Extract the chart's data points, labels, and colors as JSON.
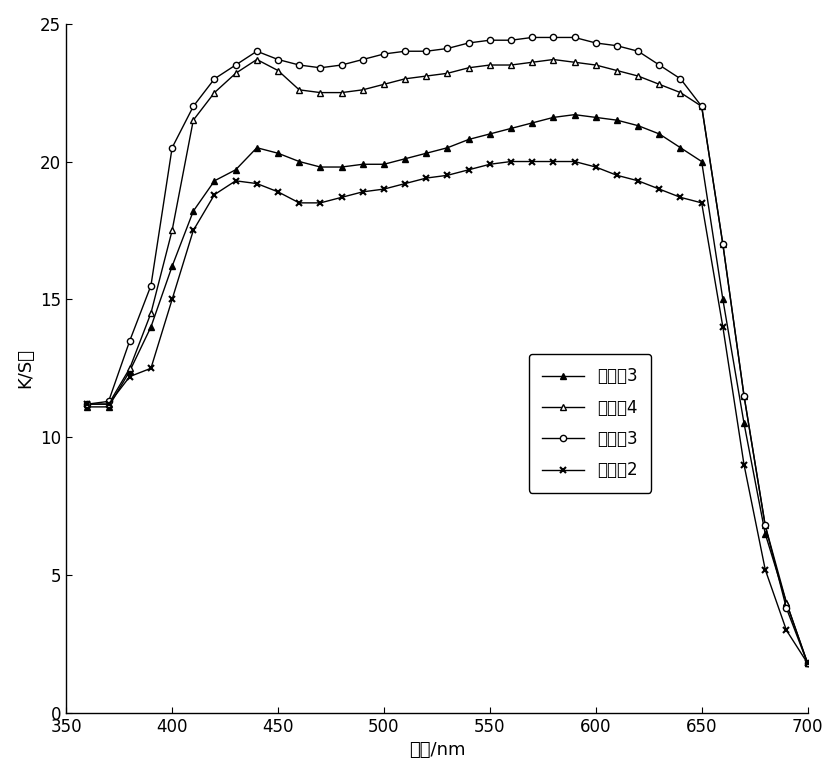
{
  "x": [
    360,
    370,
    380,
    390,
    400,
    410,
    420,
    430,
    440,
    450,
    460,
    470,
    480,
    490,
    500,
    510,
    520,
    530,
    540,
    550,
    560,
    570,
    580,
    590,
    600,
    610,
    620,
    630,
    640,
    650,
    660,
    670,
    680,
    690,
    700
  ],
  "duibili3": [
    11.1,
    11.1,
    12.4,
    14.0,
    16.2,
    18.2,
    19.3,
    19.7,
    20.5,
    20.3,
    20.0,
    19.8,
    19.8,
    19.9,
    19.9,
    20.1,
    20.3,
    20.5,
    20.8,
    21.0,
    21.2,
    21.4,
    21.6,
    21.7,
    21.6,
    21.5,
    21.3,
    21.0,
    20.5,
    20.0,
    15.0,
    10.5,
    6.5,
    4.0,
    1.8
  ],
  "shishi4": [
    11.2,
    11.2,
    12.5,
    14.5,
    17.5,
    21.5,
    22.5,
    23.2,
    23.7,
    23.3,
    22.6,
    22.5,
    22.5,
    22.6,
    22.8,
    23.0,
    23.1,
    23.2,
    23.4,
    23.5,
    23.5,
    23.6,
    23.7,
    23.6,
    23.5,
    23.3,
    23.1,
    22.8,
    22.5,
    22.0,
    17.0,
    11.5,
    6.8,
    4.0,
    1.8
  ],
  "shishi3": [
    11.2,
    11.3,
    13.5,
    15.5,
    20.5,
    22.0,
    23.0,
    23.5,
    24.0,
    23.7,
    23.5,
    23.4,
    23.5,
    23.7,
    23.9,
    24.0,
    24.0,
    24.1,
    24.3,
    24.4,
    24.4,
    24.5,
    24.5,
    24.5,
    24.3,
    24.2,
    24.0,
    23.5,
    23.0,
    22.0,
    17.0,
    11.5,
    6.8,
    3.8,
    1.8
  ],
  "duibili2": [
    11.2,
    11.2,
    12.2,
    12.5,
    15.0,
    17.5,
    18.8,
    19.3,
    19.2,
    18.9,
    18.5,
    18.5,
    18.7,
    18.9,
    19.0,
    19.2,
    19.4,
    19.5,
    19.7,
    19.9,
    20.0,
    20.0,
    20.0,
    20.0,
    19.8,
    19.5,
    19.3,
    19.0,
    18.7,
    18.5,
    14.0,
    9.0,
    5.2,
    3.0,
    1.8
  ],
  "ylabel": "K/S值",
  "xlabel": "波长/nm",
  "legend": [
    "对比体3",
    "实施体4",
    "实施体3",
    "对比体2"
  ],
  "xlim": [
    350,
    700
  ],
  "ylim": [
    0,
    25
  ],
  "xticks": [
    350,
    400,
    450,
    500,
    550,
    600,
    650,
    700
  ],
  "yticks": [
    0,
    5,
    10,
    15,
    20,
    25
  ],
  "color": "#000000",
  "background": "#ffffff"
}
